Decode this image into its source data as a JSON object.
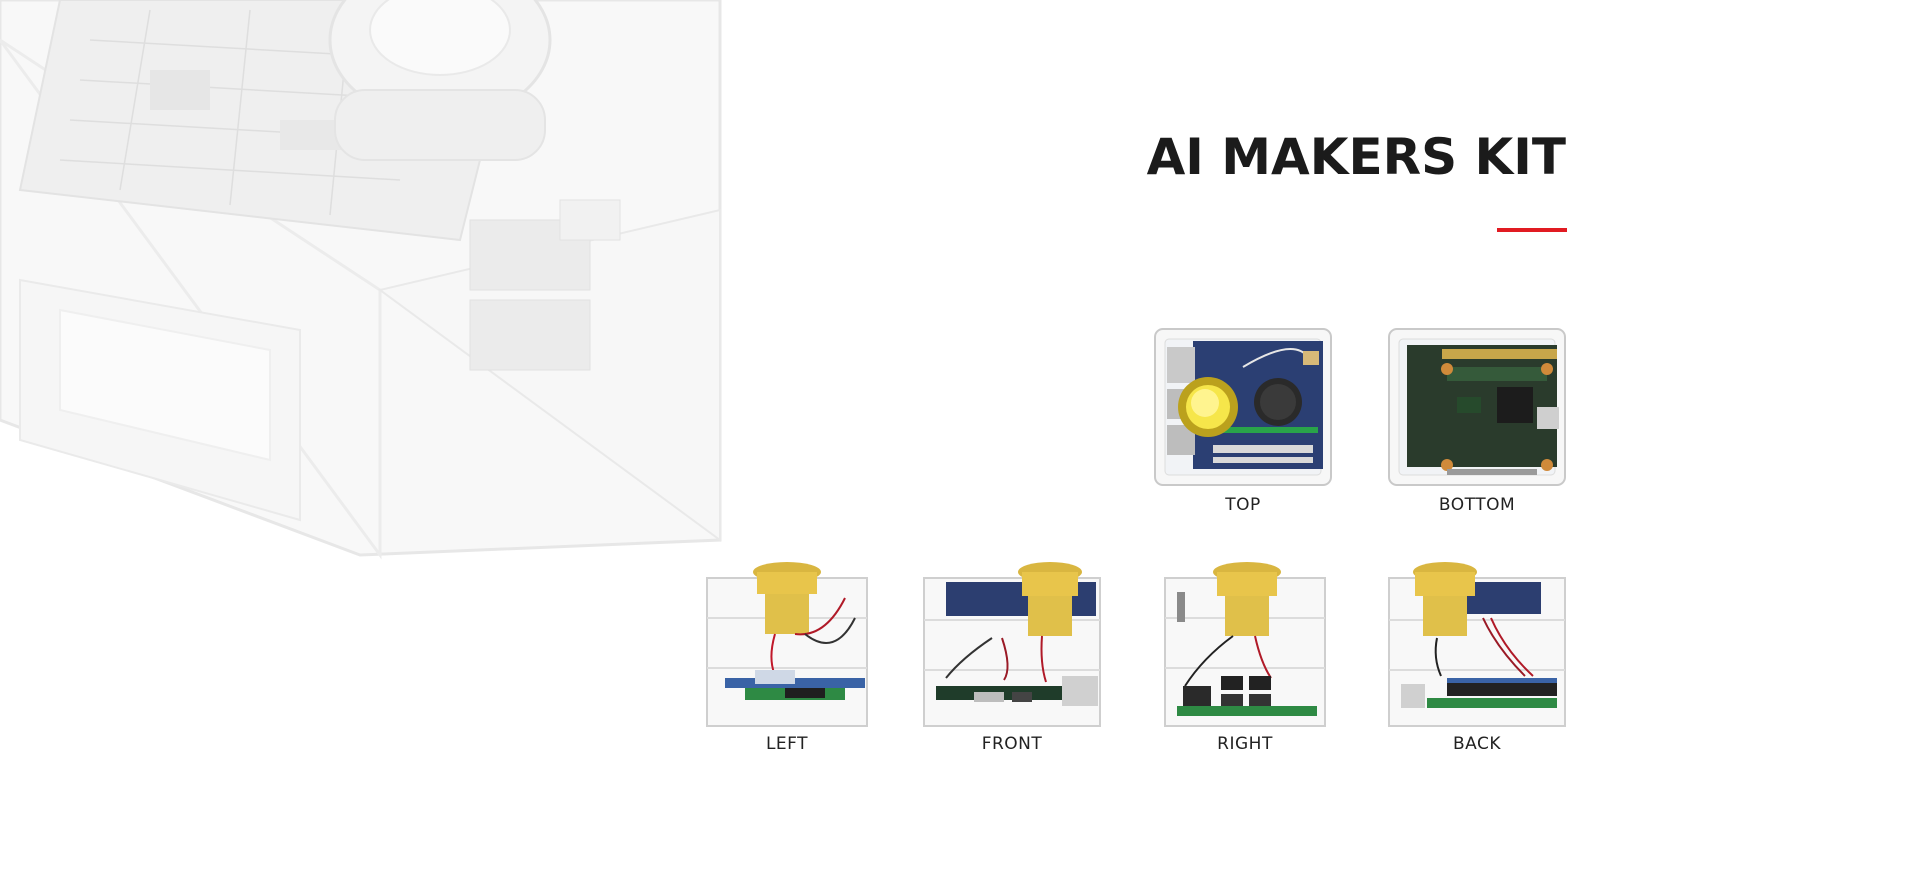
{
  "title": "AI MAKERS KIT",
  "accent_color": "#e11b22",
  "views": {
    "top": "TOP",
    "bottom": "BOTTOM",
    "left": "LEFT",
    "front": "FRONT",
    "right": "RIGHT",
    "back": "BACK"
  }
}
